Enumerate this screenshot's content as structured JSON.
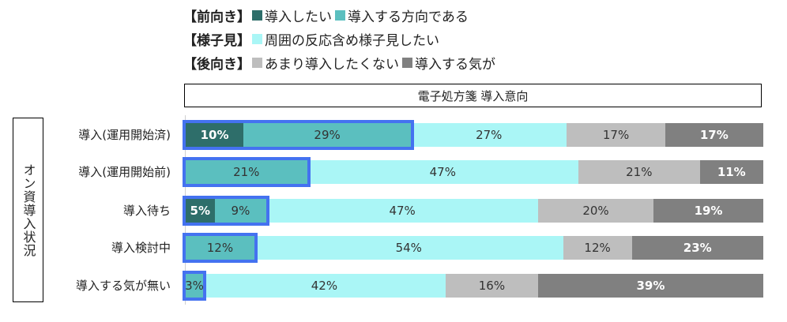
{
  "legend": {
    "rows": [
      {
        "group": "【前向き】",
        "items": [
          {
            "label": "導入したい",
            "color": "#2e6e6a"
          },
          {
            "label": "導入する方向である",
            "color": "#5bbfbf"
          }
        ]
      },
      {
        "group": "【様子見】",
        "items": [
          {
            "label": "周囲の反応含め様子見したい",
            "color": "#aaf6f6"
          }
        ]
      },
      {
        "group": "【後向き】",
        "items": [
          {
            "label": "あまり導入したくない",
            "color": "#bebebe"
          },
          {
            "label": "導入する気が",
            "color": "#808080"
          }
        ]
      }
    ]
  },
  "chart_title": "電子処方箋 導入意向",
  "y_group_label": "オン資導入状況",
  "colors": {
    "want": "#2e6e6a",
    "direction": "#5bbfbf",
    "wait_see": "#aaf6f6",
    "not_really": "#bebebe",
    "no_intent": "#808080",
    "highlight": "#4472f0"
  },
  "chart_data": {
    "type": "bar",
    "orientation": "horizontal",
    "stacked": true,
    "normalized": true,
    "title": "電子処方箋 導入意向",
    "ylabel": "オン資導入状況",
    "xlabel": "",
    "categories": [
      "導入(運用開始済)",
      "導入(運用開始前)",
      "導入待ち",
      "導入検討中",
      "導入する気が無い"
    ],
    "series": [
      {
        "name": "導入したい",
        "group": "前向き",
        "values": [
          10,
          0,
          5,
          0,
          0
        ]
      },
      {
        "name": "導入する方向である",
        "group": "前向き",
        "values": [
          29,
          21,
          9,
          12,
          3
        ]
      },
      {
        "name": "周囲の反応含め様子見したい",
        "group": "様子見",
        "values": [
          27,
          47,
          47,
          54,
          42
        ]
      },
      {
        "name": "あまり導入したくない",
        "group": "後向き",
        "values": [
          17,
          21,
          20,
          12,
          16
        ]
      },
      {
        "name": "導入する気が無い",
        "group": "後向き",
        "values": [
          17,
          11,
          19,
          23,
          39
        ]
      }
    ],
    "labels": [
      [
        "10%",
        "29%",
        "27%",
        "17%",
        "17%"
      ],
      [
        "",
        "21%",
        "47%",
        "21%",
        "11%"
      ],
      [
        "5%",
        "9%",
        "47%",
        "20%",
        "19%"
      ],
      [
        "",
        "12%",
        "54%",
        "12%",
        "23%"
      ],
      [
        "",
        "3%",
        "42%",
        "16%",
        "39%"
      ]
    ],
    "highlight": "前向き segments (導入したい + 導入する方向である) outlined in blue",
    "legend_position": "top",
    "grid": false
  }
}
